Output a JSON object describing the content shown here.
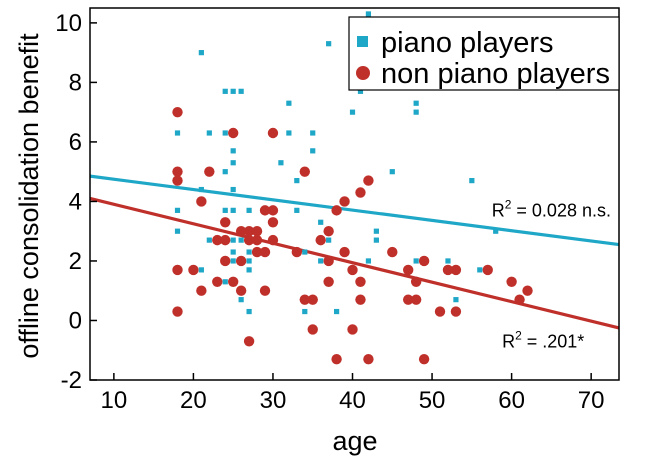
{
  "chart_data": {
    "type": "scatter",
    "xlabel": "age",
    "ylabel": "offline consolidation benefit",
    "xlim": [
      7,
      73.5
    ],
    "ylim": [
      -2,
      10.5
    ],
    "xticks": [
      10,
      20,
      30,
      40,
      50,
      60,
      70
    ],
    "yticks": [
      -2,
      0,
      2,
      4,
      6,
      8,
      10
    ],
    "legend": {
      "placement": "top-right",
      "entries": [
        {
          "label": "piano players",
          "marker": "square",
          "color": "#1fa7c7"
        },
        {
          "label": "non piano players",
          "marker": "circle",
          "color": "#c0302b"
        }
      ]
    },
    "series": [
      {
        "name": "piano players",
        "marker": "square",
        "color": "#1fa7c7",
        "points": [
          [
            18,
            4.7
          ],
          [
            18,
            6.3
          ],
          [
            18,
            3.7
          ],
          [
            18,
            3.0
          ],
          [
            18,
            1.7
          ],
          [
            20,
            1.7
          ],
          [
            21,
            9.0
          ],
          [
            21,
            4.4
          ],
          [
            21,
            1.7
          ],
          [
            22,
            6.3
          ],
          [
            22,
            2.7
          ],
          [
            23,
            2.7
          ],
          [
            24,
            7.7
          ],
          [
            24,
            6.3
          ],
          [
            24,
            5.0
          ],
          [
            24,
            3.7
          ],
          [
            24,
            3.3
          ],
          [
            24,
            2.0
          ],
          [
            24,
            1.3
          ],
          [
            25,
            7.7
          ],
          [
            25,
            5.7
          ],
          [
            25,
            5.3
          ],
          [
            25,
            4.4
          ],
          [
            25,
            3.7
          ],
          [
            25,
            2.7
          ],
          [
            25,
            2.3
          ],
          [
            25,
            2.0
          ],
          [
            25,
            1.3
          ],
          [
            26,
            7.7
          ],
          [
            26,
            2.7
          ],
          [
            26,
            2.0
          ],
          [
            26,
            0.7
          ],
          [
            27,
            3.7
          ],
          [
            27,
            2.3
          ],
          [
            27,
            2.0
          ],
          [
            27,
            1.7
          ],
          [
            27,
            0.3
          ],
          [
            29,
            2.3
          ],
          [
            30,
            3.3
          ],
          [
            31,
            5.3
          ],
          [
            32,
            7.3
          ],
          [
            32,
            6.3
          ],
          [
            33,
            4.7
          ],
          [
            33,
            3.7
          ],
          [
            34,
            5.0
          ],
          [
            34,
            2.3
          ],
          [
            34,
            0.3
          ],
          [
            35,
            6.3
          ],
          [
            35,
            5.7
          ],
          [
            36,
            3.3
          ],
          [
            36,
            2.0
          ],
          [
            37,
            9.3
          ],
          [
            37,
            2.7
          ],
          [
            38,
            0.3
          ],
          [
            40,
            7.0
          ],
          [
            41,
            7.7
          ],
          [
            41,
            1.3
          ],
          [
            42,
            10.3
          ],
          [
            42,
            2.0
          ],
          [
            43,
            3.0
          ],
          [
            43,
            2.7
          ],
          [
            45,
            5.0
          ],
          [
            45,
            2.3
          ],
          [
            48,
            7.3
          ],
          [
            48,
            7.0
          ],
          [
            48,
            2.0
          ],
          [
            52,
            2.0
          ],
          [
            53,
            0.7
          ],
          [
            55,
            4.7
          ],
          [
            56,
            1.7
          ],
          [
            58,
            3.0
          ],
          [
            60,
            1.3
          ]
        ]
      },
      {
        "name": "non piano players",
        "marker": "circle",
        "color": "#c0302b",
        "points": [
          [
            18,
            7.0
          ],
          [
            18,
            5.0
          ],
          [
            18,
            4.7
          ],
          [
            18,
            1.7
          ],
          [
            18,
            0.3
          ],
          [
            20,
            1.7
          ],
          [
            21,
            4.0
          ],
          [
            21,
            1.0
          ],
          [
            22,
            5.0
          ],
          [
            23,
            2.7
          ],
          [
            23,
            1.3
          ],
          [
            24,
            3.3
          ],
          [
            24,
            2.7
          ],
          [
            24,
            2.0
          ],
          [
            25,
            6.3
          ],
          [
            25,
            1.3
          ],
          [
            26,
            3.0
          ],
          [
            26,
            2.0
          ],
          [
            26,
            1.0
          ],
          [
            27,
            3.0
          ],
          [
            27,
            2.7
          ],
          [
            27,
            -0.7
          ],
          [
            28,
            3.0
          ],
          [
            28,
            2.7
          ],
          [
            28,
            2.3
          ],
          [
            29,
            3.7
          ],
          [
            29,
            2.3
          ],
          [
            29,
            1.0
          ],
          [
            30,
            6.3
          ],
          [
            30,
            3.7
          ],
          [
            30,
            3.3
          ],
          [
            30,
            2.7
          ],
          [
            33,
            2.3
          ],
          [
            34,
            5.0
          ],
          [
            34,
            0.7
          ],
          [
            35,
            0.7
          ],
          [
            35,
            -0.3
          ],
          [
            36,
            2.7
          ],
          [
            37,
            3.0
          ],
          [
            37,
            2.0
          ],
          [
            37,
            1.3
          ],
          [
            38,
            3.7
          ],
          [
            38,
            -1.3
          ],
          [
            39,
            4.0
          ],
          [
            39,
            2.3
          ],
          [
            40,
            1.7
          ],
          [
            40,
            -0.3
          ],
          [
            41,
            4.3
          ],
          [
            41,
            1.3
          ],
          [
            41,
            0.7
          ],
          [
            42,
            4.7
          ],
          [
            42,
            -1.3
          ],
          [
            45,
            2.3
          ],
          [
            47,
            1.7
          ],
          [
            47,
            0.7
          ],
          [
            48,
            1.3
          ],
          [
            48,
            0.7
          ],
          [
            49,
            2.0
          ],
          [
            49,
            -1.3
          ],
          [
            51,
            0.3
          ],
          [
            52,
            1.7
          ],
          [
            53,
            1.7
          ],
          [
            53,
            0.3
          ],
          [
            57,
            1.7
          ],
          [
            60,
            1.3
          ],
          [
            61,
            0.7
          ],
          [
            62,
            1.0
          ]
        ]
      }
    ],
    "fit_lines": [
      {
        "series": "piano players",
        "x": [
          7,
          73.5
        ],
        "y": [
          4.85,
          2.55
        ],
        "color": "#1fa7c7"
      },
      {
        "series": "non piano players",
        "x": [
          7,
          73.5
        ],
        "y": [
          4.1,
          -0.25
        ],
        "color": "#c0302b"
      }
    ],
    "annotations": [
      {
        "id": "piano",
        "prefix": "R",
        "sup": "2",
        "suffix": " = 0.028 n.s.",
        "x": 57.5,
        "y": 3.5
      },
      {
        "id": "nonpiano",
        "prefix": "R",
        "sup": "2",
        "suffix": " = .201*",
        "x": 58.8,
        "y": -0.9
      }
    ]
  }
}
